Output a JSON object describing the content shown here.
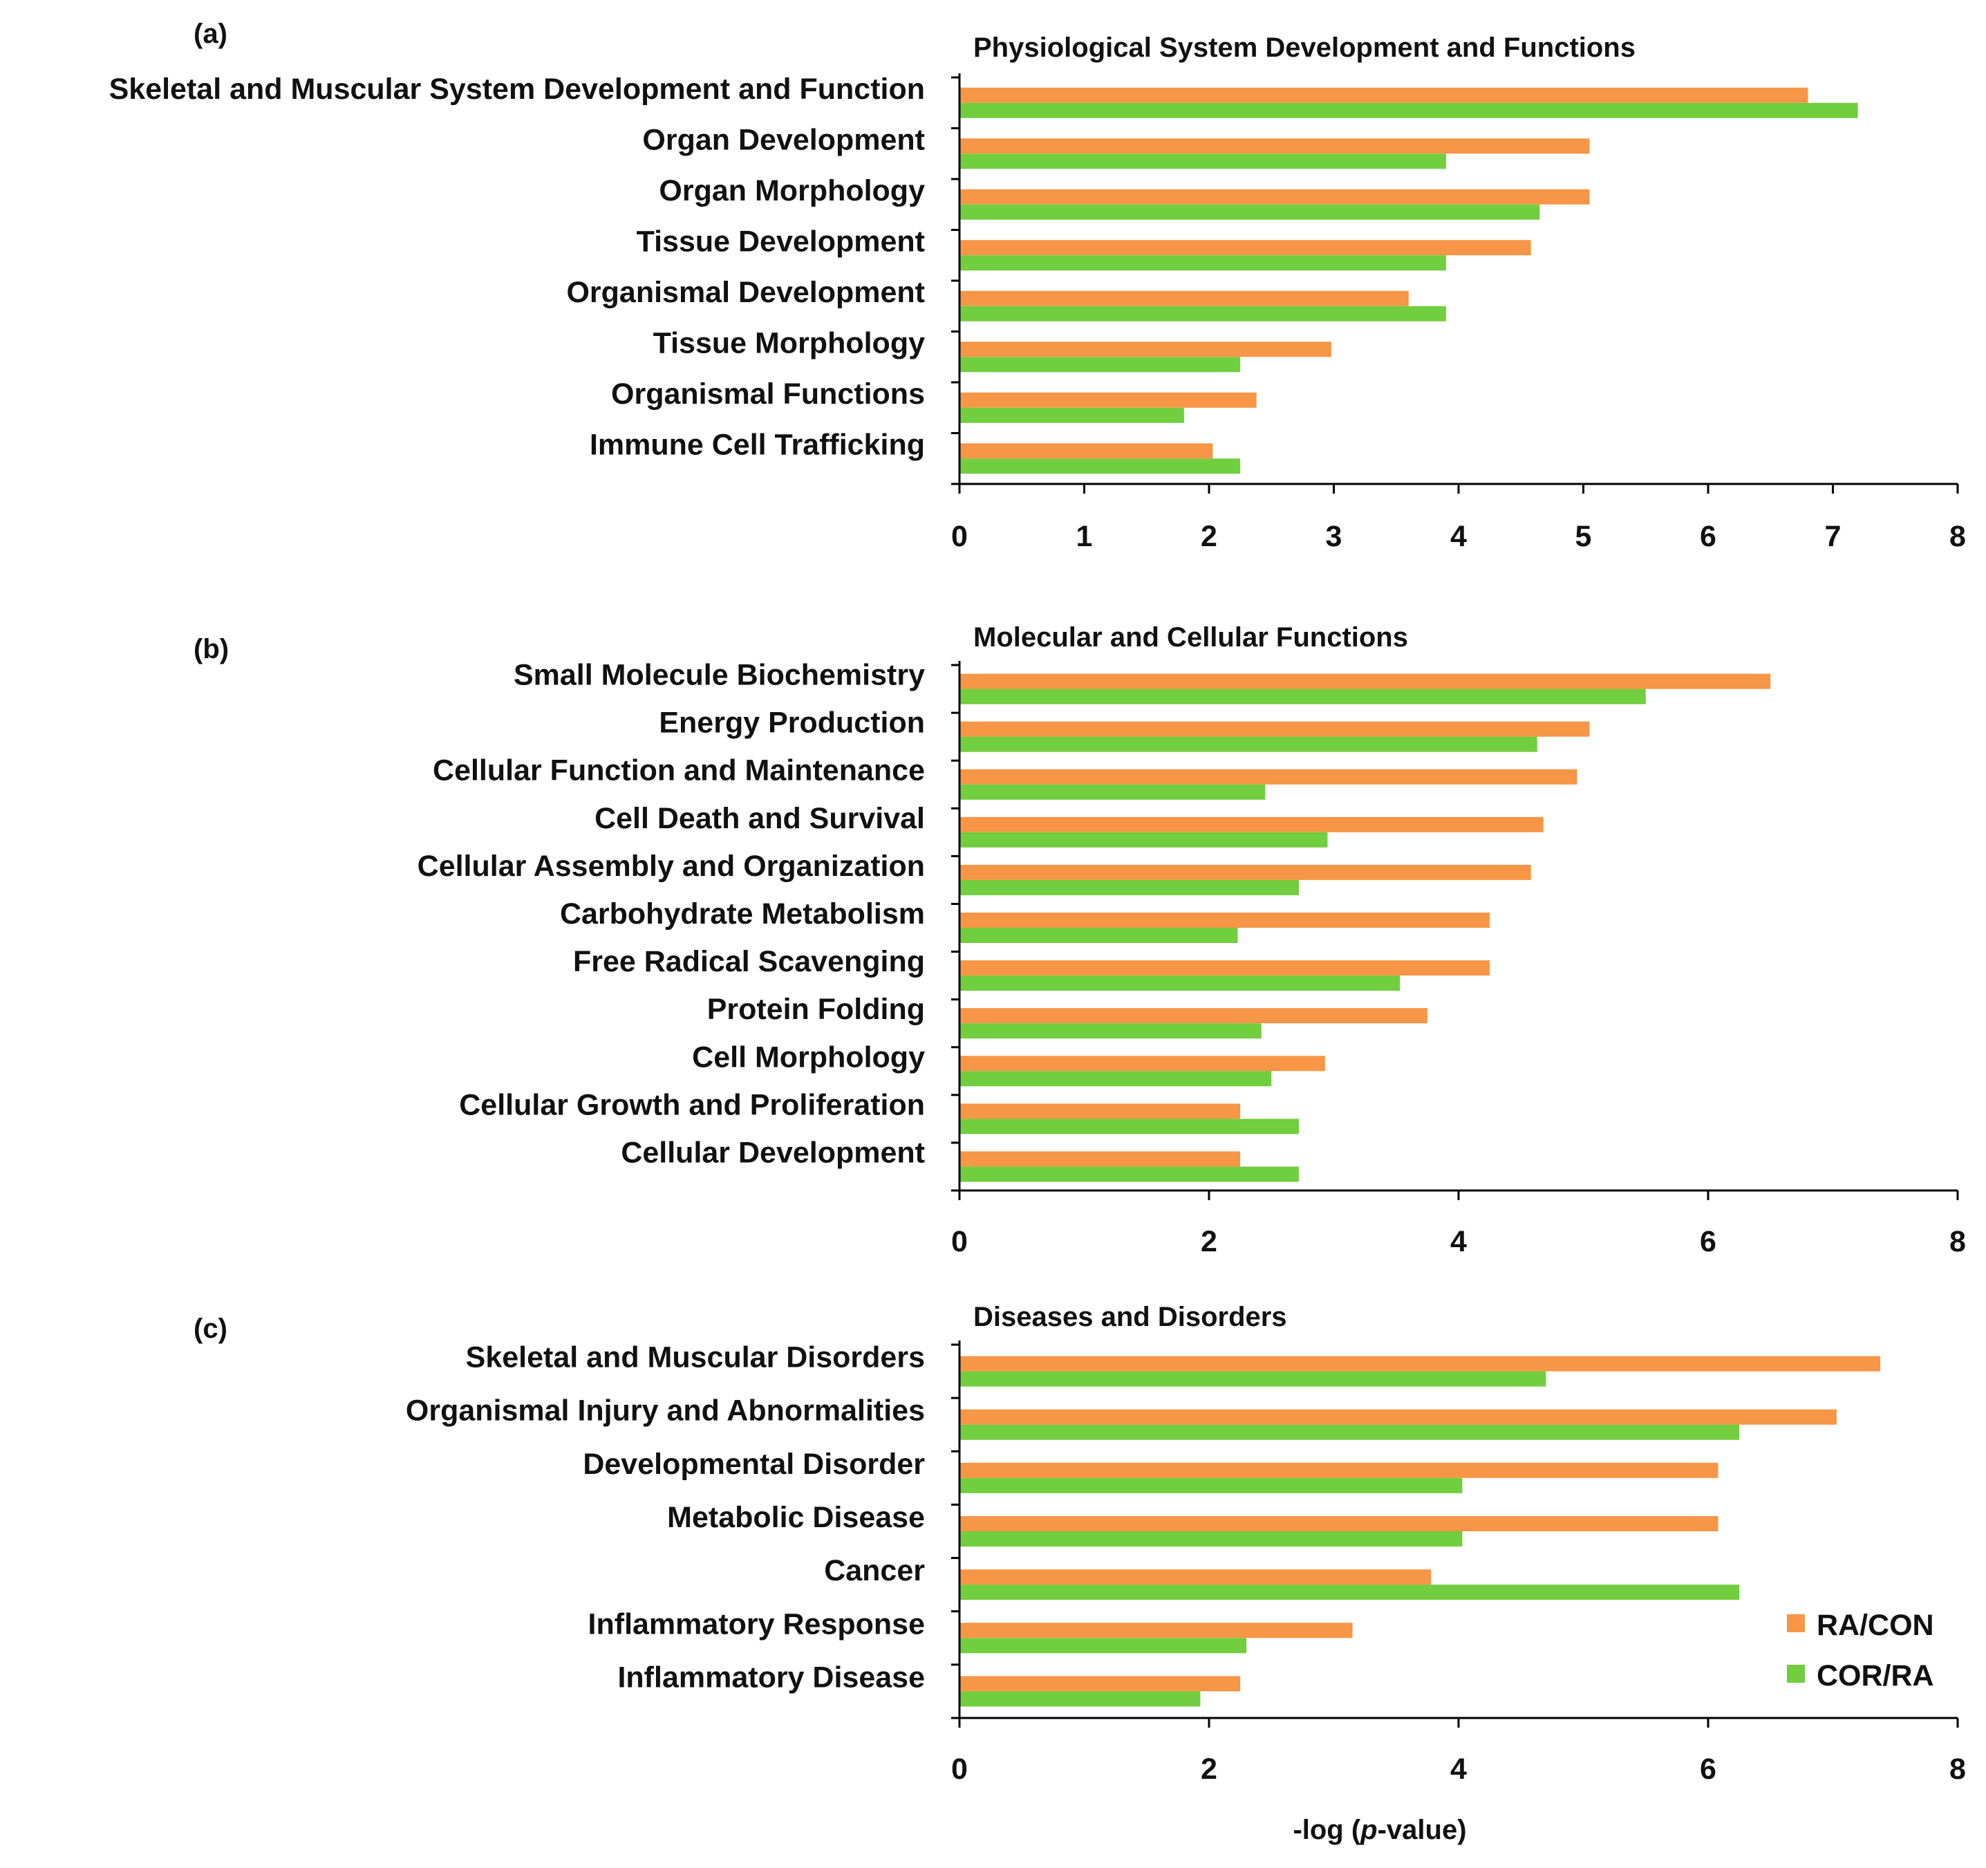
{
  "colors": {
    "ra_con": "#F79646",
    "cor_ra": "#71CE3E",
    "axis": "#000000"
  },
  "legend": {
    "items": [
      "RA/CON",
      "COR/RA"
    ],
    "position": "bottom-right"
  },
  "xlabel": "-log (p-value)",
  "chart_data": [
    {
      "type": "bar",
      "orientation": "horizontal",
      "panel_label": "(a)",
      "title": "Physiological System Development and Functions",
      "categories": [
        "Skeletal and Muscular System Development and Function",
        "Organ Development",
        "Organ Morphology",
        "Tissue Development",
        "Organismal Development",
        "Tissue Morphology",
        "Organismal Functions",
        "Immune Cell Trafficking"
      ],
      "series": [
        {
          "name": "RA/CON",
          "values": [
            6.8,
            5.05,
            5.05,
            4.58,
            3.6,
            2.98,
            2.38,
            2.03
          ]
        },
        {
          "name": "COR/RA",
          "values": [
            7.2,
            3.9,
            4.65,
            3.9,
            3.9,
            2.25,
            1.8,
            2.25
          ]
        }
      ],
      "xlim": [
        0,
        8
      ],
      "xticks": [
        "0",
        "1",
        "2",
        "3",
        "4",
        "5",
        "6",
        "7",
        "8"
      ]
    },
    {
      "type": "bar",
      "orientation": "horizontal",
      "panel_label": "(b)",
      "title": "Molecular and Cellular Functions",
      "categories": [
        "Small Molecule Biochemistry",
        "Energy Production",
        "Cellular Function and Maintenance",
        "Cell Death and Survival",
        "Cellular Assembly and Organization",
        "Carbohydrate Metabolism",
        "Free Radical Scavenging",
        "Protein Folding",
        "Cell Morphology",
        "Cellular Growth and Proliferation",
        "Cellular Development"
      ],
      "series": [
        {
          "name": "RA/CON",
          "values": [
            6.5,
            5.05,
            4.95,
            4.68,
            4.58,
            4.25,
            4.25,
            3.75,
            2.93,
            2.25,
            2.25
          ]
        },
        {
          "name": "COR/RA",
          "values": [
            5.5,
            4.63,
            2.45,
            2.95,
            2.72,
            2.23,
            3.53,
            2.42,
            2.5,
            2.72,
            2.72
          ]
        }
      ],
      "xlim": [
        0,
        8
      ],
      "xticks": [
        "0",
        "2",
        "4",
        "6",
        "8"
      ]
    },
    {
      "type": "bar",
      "orientation": "horizontal",
      "panel_label": "(c)",
      "title": "Diseases and Disorders",
      "categories": [
        "Skeletal and Muscular Disorders",
        "Organismal Injury and Abnormalities",
        "Developmental Disorder",
        "Metabolic Disease",
        "Cancer",
        "Inflammatory Response",
        "Inflammatory Disease"
      ],
      "series": [
        {
          "name": "RA/CON",
          "values": [
            7.38,
            7.03,
            6.08,
            6.08,
            3.78,
            3.15,
            2.25
          ]
        },
        {
          "name": "COR/RA",
          "values": [
            4.7,
            6.25,
            4.03,
            4.03,
            6.25,
            2.3,
            1.93
          ]
        }
      ],
      "xlim": [
        0,
        8
      ],
      "xticks": [
        "0",
        "2",
        "4",
        "6",
        "8"
      ]
    }
  ]
}
